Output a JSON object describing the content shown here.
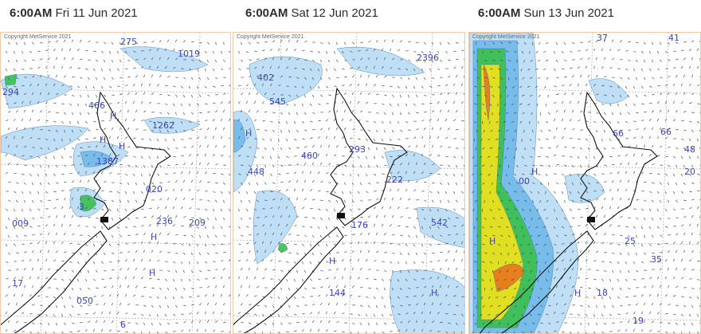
{
  "panels": [
    {
      "time": "6:00AM",
      "date": "Fri 11 Jun 2021",
      "copyright": "Copyright MetService 2021",
      "labels": [
        {
          "t": "275"
        },
        {
          "t": "1019"
        },
        {
          "t": "294"
        },
        {
          "t": "H"
        },
        {
          "t": "466"
        },
        {
          "t": "H"
        },
        {
          "t": "1262"
        },
        {
          "t": "1387"
        },
        {
          "t": "H"
        },
        {
          "t": "020"
        },
        {
          "t": "3"
        },
        {
          "t": "009"
        },
        {
          "t": "236"
        },
        {
          "t": "209"
        },
        {
          "t": "H"
        },
        {
          "t": "050"
        },
        {
          "t": "H"
        },
        {
          "t": "6"
        },
        {
          "t": "17"
        }
      ]
    },
    {
      "time": "6:00AM",
      "date": "Sat 12 Jun 2021",
      "copyright": "Copyright MetService 2021",
      "labels": [
        {
          "t": "402"
        },
        {
          "t": "545"
        },
        {
          "t": "2396"
        },
        {
          "t": "293"
        },
        {
          "t": "460"
        },
        {
          "t": "448"
        },
        {
          "t": "222"
        },
        {
          "t": "176"
        },
        {
          "t": "542"
        },
        {
          "t": "H"
        },
        {
          "t": "144"
        },
        {
          "t": "H"
        },
        {
          "t": "H"
        }
      ]
    },
    {
      "time": "6:00AM",
      "date": "Sun 13 Jun 2021",
      "copyright": "Copyright MetService 2021",
      "labels": [
        {
          "t": "37"
        },
        {
          "t": "41"
        },
        {
          "t": "66"
        },
        {
          "t": "66"
        },
        {
          "t": "48"
        },
        {
          "t": "20"
        },
        {
          "t": "H"
        },
        {
          "t": "25"
        },
        {
          "t": "35"
        },
        {
          "t": "18"
        },
        {
          "t": "H"
        },
        {
          "t": "19"
        },
        {
          "t": "00"
        },
        {
          "t": "H"
        }
      ]
    }
  ],
  "colors": {
    "title_text": "#2c2c2c",
    "panel_border": "#f2c9a6",
    "wind_arrows": "#4a4a4a",
    "coastline": "#111111",
    "pressure_labels": "#3b45b8",
    "rain_light": "#b8dcf5",
    "rain_moderate": "#6fb8ea",
    "rain_heavy": "#38c04a",
    "rain_very_heavy": "#f2e21c",
    "rain_extreme": "#e8741c"
  }
}
